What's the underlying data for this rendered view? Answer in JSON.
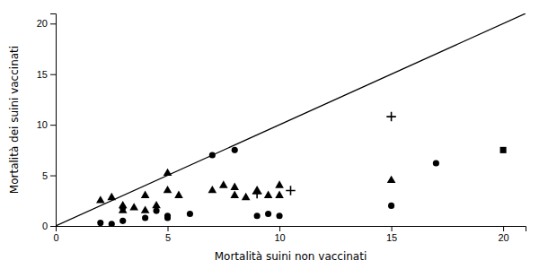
{
  "chart_data": {
    "type": "scatter",
    "xlabel": "Mortalità suini non vaccinati",
    "ylabel": "Mortalità dei suini vaccinati",
    "xlim": [
      0,
      21
    ],
    "ylim": [
      0,
      21
    ],
    "xticks": [
      0,
      5,
      10,
      15,
      20
    ],
    "yticks": [
      0,
      5,
      10,
      15,
      20
    ],
    "series": [
      {
        "marker": "circle",
        "color": "#000000",
        "x": [
          2,
          2.5,
          3,
          3,
          4,
          4.5,
          5,
          5,
          6,
          7,
          8,
          9,
          9.5,
          10,
          15,
          17
        ],
        "values": [
          0.3,
          0.2,
          0.5,
          1.8,
          0.8,
          1.5,
          1.0,
          0.8,
          1.2,
          7.0,
          7.5,
          1.0,
          1.2,
          1.0,
          2.0,
          6.2
        ]
      },
      {
        "marker": "triangle",
        "color": "#000000",
        "x": [
          2,
          2.5,
          3,
          3,
          3.5,
          4,
          4,
          4.5,
          5,
          5,
          5.5,
          7,
          7.5,
          8,
          8,
          8.5,
          9,
          9.5,
          10,
          10,
          15
        ],
        "values": [
          2.5,
          2.8,
          2.0,
          1.5,
          1.8,
          3.0,
          1.5,
          2.0,
          5.2,
          3.5,
          3.0,
          3.5,
          4.0,
          3.8,
          3.0,
          2.8,
          3.5,
          3.0,
          3.0,
          4.0,
          4.5
        ]
      },
      {
        "marker": "plus",
        "color": "#000000",
        "x": [
          9,
          10.5,
          15
        ],
        "values": [
          3.2,
          3.5,
          10.8
        ]
      },
      {
        "marker": "square",
        "color": "#000000",
        "x": [
          20
        ],
        "values": [
          7.5
        ]
      },
      {
        "type": "line",
        "line_style": "solid",
        "color": "#000000",
        "x": [
          0,
          21
        ],
        "values": [
          0,
          21
        ]
      }
    ]
  }
}
